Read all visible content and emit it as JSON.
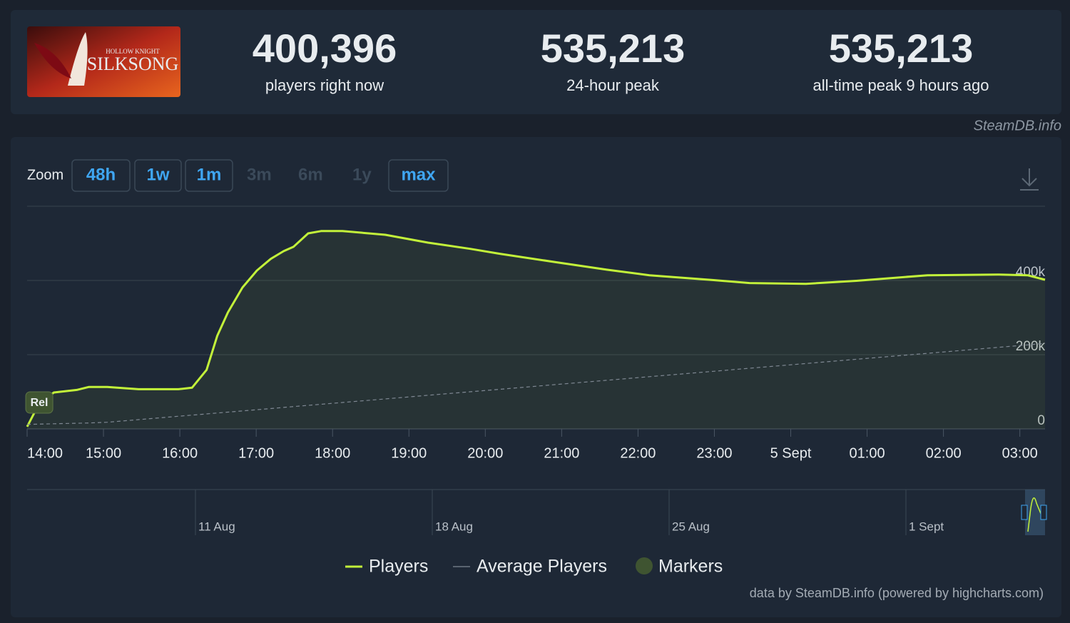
{
  "header": {
    "logo": {
      "line1": "HOLLOW KNIGHT",
      "line2": "SILKSONG"
    },
    "stats": [
      {
        "value": "400,396",
        "label": "players right now"
      },
      {
        "value": "535,213",
        "label": "24-hour peak"
      },
      {
        "value": "535,213",
        "label": "all-time peak 9 hours ago"
      }
    ]
  },
  "watermark": "SteamDB.info",
  "zoom": {
    "label": "Zoom",
    "buttons": [
      {
        "label": "48h",
        "enabled": true
      },
      {
        "label": "1w",
        "enabled": true
      },
      {
        "label": "1m",
        "enabled": true
      },
      {
        "label": "3m",
        "enabled": false
      },
      {
        "label": "6m",
        "enabled": false
      },
      {
        "label": "1y",
        "enabled": false
      },
      {
        "label": "max",
        "enabled": true
      }
    ]
  },
  "chart_data": {
    "type": "line",
    "x": [
      14.0,
      14.16,
      14.35,
      14.65,
      14.81,
      15.05,
      15.46,
      15.98,
      16.16,
      16.35,
      16.49,
      16.63,
      16.82,
      17.01,
      17.19,
      17.36,
      17.49,
      17.68,
      17.85,
      18.13,
      18.69,
      19.25,
      19.81,
      20.19,
      20.93,
      21.59,
      22.15,
      22.99,
      23.46,
      24.2,
      24.86,
      25.79,
      26.73,
      27.1,
      27.33
    ],
    "series": [
      {
        "name": "Players",
        "color": "#c3f23a",
        "dashed": false,
        "values": [
          6000,
          69000,
          98000,
          105000,
          113000,
          113000,
          107000,
          107000,
          111000,
          159000,
          251000,
          314000,
          381000,
          427000,
          458000,
          479000,
          491000,
          527000,
          533000,
          533000,
          523000,
          502000,
          485000,
          472000,
          449000,
          429000,
          414000,
          401000,
          393000,
          391000,
          399000,
          414000,
          416000,
          414000,
          402000
        ]
      },
      {
        "name": "Average Players",
        "color": "#7f8893",
        "dashed": true,
        "values": [
          12000,
          12800,
          13800,
          15200,
          16000,
          17900,
          25000,
          34000,
          37100,
          40400,
          42800,
          45200,
          48500,
          51800,
          54900,
          57800,
          60100,
          63400,
          66300,
          71100,
          80800,
          90500,
          100200,
          106700,
          119600,
          131000,
          140700,
          155200,
          163400,
          176200,
          187600,
          203700,
          220000,
          226400,
          230400
        ]
      }
    ],
    "xlim": [
      14,
      27.33
    ],
    "xticks": [
      {
        "value": 14,
        "label": "14:00"
      },
      {
        "value": 15,
        "label": "15:00"
      },
      {
        "value": 16,
        "label": "16:00"
      },
      {
        "value": 17,
        "label": "17:00"
      },
      {
        "value": 18,
        "label": "18:00"
      },
      {
        "value": 19,
        "label": "19:00"
      },
      {
        "value": 20,
        "label": "20:00"
      },
      {
        "value": 21,
        "label": "21:00"
      },
      {
        "value": 22,
        "label": "22:00"
      },
      {
        "value": 23,
        "label": "23:00"
      },
      {
        "value": 24,
        "label": "5 Sept"
      },
      {
        "value": 25,
        "label": "01:00"
      },
      {
        "value": 26,
        "label": "02:00"
      },
      {
        "value": 27,
        "label": "03:00"
      }
    ],
    "ylim": [
      0,
      600000
    ],
    "yticks": [
      0,
      {
        "value": 200000,
        "label": "200k"
      },
      {
        "value": 400000,
        "label": "400k"
      }
    ],
    "grid": true,
    "legend_position": "bottom",
    "markers": {
      "name": "Markers",
      "color": "#3f5431",
      "items": [
        {
          "x": 14.15,
          "label": "Rel"
        }
      ]
    },
    "navigator": {
      "labels": [
        "11 Aug",
        "18 Aug",
        "25 Aug",
        "1 Sept"
      ]
    },
    "credits": "data by SteamDB.info (powered by highcharts.com)"
  }
}
